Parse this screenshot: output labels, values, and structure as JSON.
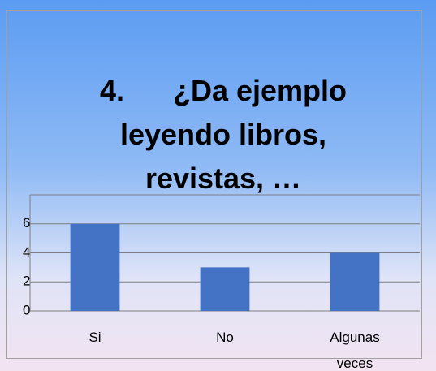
{
  "chart_data": {
    "type": "bar",
    "title": "4.      ¿Da ejemplo leyendo libros, revistas, …",
    "categories": [
      "Si",
      "No",
      "Algunas veces"
    ],
    "values": [
      6,
      3,
      4
    ],
    "color": "#4472c4",
    "ylim": [
      0,
      8
    ],
    "yticks": [
      0,
      2,
      4,
      6
    ],
    "grid": true
  }
}
